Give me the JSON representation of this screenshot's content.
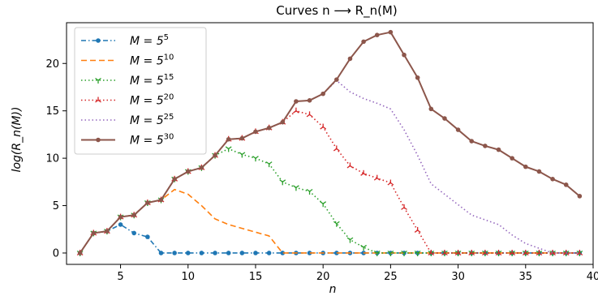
{
  "chart_data": {
    "type": "line",
    "title": "Curves n ⟶ R_n(M)",
    "xlabel": "n",
    "ylabel": "log(R_n(M))",
    "xlim": [
      1,
      40
    ],
    "ylim": [
      -1.2,
      24.3
    ],
    "xticks": [
      5,
      10,
      15,
      20,
      25,
      30,
      35,
      40
    ],
    "yticks": [
      0,
      5,
      10,
      15,
      20
    ],
    "legend_position": "top-left",
    "grid": false,
    "series": [
      {
        "name": "M = 5^5",
        "base": "M = 5",
        "exp": "5",
        "color": "#1f77b4",
        "style": "dashdot",
        "marker": "dot",
        "x": [
          2,
          3,
          4,
          5,
          6,
          7,
          8,
          9,
          10,
          11,
          12,
          13,
          14,
          15,
          16,
          17,
          18,
          19,
          20,
          21,
          22,
          23,
          24,
          25,
          26,
          27,
          28,
          29,
          30,
          31,
          32,
          33,
          34,
          35,
          36,
          37,
          38,
          39
        ],
        "y": [
          0,
          2.1,
          2.3,
          3.0,
          2.1,
          1.7,
          0,
          0,
          0,
          0,
          0,
          0,
          0,
          0,
          0,
          0,
          0,
          0,
          0,
          0,
          0,
          0,
          0,
          0,
          0,
          0,
          0,
          0,
          0,
          0,
          0,
          0,
          0,
          0,
          0,
          0,
          0,
          0
        ]
      },
      {
        "name": "M = 5^10",
        "base": "M = 5",
        "exp": "10",
        "color": "#ff7f0e",
        "style": "dashed",
        "marker": "none",
        "x": [
          2,
          3,
          4,
          5,
          6,
          7,
          8,
          9,
          10,
          11,
          12,
          13,
          14,
          15,
          16,
          17,
          18,
          19,
          20,
          21,
          22,
          23,
          24,
          25,
          26,
          27,
          28,
          29,
          30,
          31,
          32,
          33,
          34,
          35,
          36,
          37,
          38,
          39
        ],
        "y": [
          0,
          2.1,
          2.3,
          3.8,
          4.0,
          5.3,
          5.6,
          6.7,
          6.2,
          5.0,
          3.6,
          3.0,
          2.6,
          2.2,
          1.8,
          0,
          0,
          0,
          0,
          0,
          0,
          0,
          0,
          0,
          0,
          0,
          0,
          0,
          0,
          0,
          0,
          0,
          0,
          0,
          0,
          0,
          0,
          0
        ]
      },
      {
        "name": "M = 5^15",
        "base": "M = 5",
        "exp": "15",
        "color": "#2ca02c",
        "style": "dotted",
        "marker": "tri_down",
        "x": [
          2,
          3,
          4,
          5,
          6,
          7,
          8,
          9,
          10,
          11,
          12,
          13,
          14,
          15,
          16,
          17,
          18,
          19,
          20,
          21,
          22,
          23,
          24,
          25,
          26,
          27,
          28,
          29,
          30,
          31,
          32,
          33,
          34,
          35,
          36,
          37,
          38,
          39
        ],
        "y": [
          0,
          2.1,
          2.3,
          3.8,
          4.0,
          5.3,
          5.6,
          7.8,
          8.6,
          9.0,
          10.3,
          11.0,
          10.4,
          10.0,
          9.4,
          7.5,
          6.9,
          6.5,
          5.2,
          3.1,
          1.4,
          0.6,
          0,
          0,
          0,
          0,
          0,
          0,
          0,
          0,
          0,
          0,
          0,
          0,
          0,
          0,
          0,
          0
        ]
      },
      {
        "name": "M = 5^20",
        "base": "M = 5",
        "exp": "20",
        "color": "#d62728",
        "style": "dotted",
        "marker": "tri_up",
        "x": [
          2,
          3,
          4,
          5,
          6,
          7,
          8,
          9,
          10,
          11,
          12,
          13,
          14,
          15,
          16,
          17,
          18,
          19,
          20,
          21,
          22,
          23,
          24,
          25,
          26,
          27,
          28,
          29,
          30,
          31,
          32,
          33,
          34,
          35,
          36,
          37,
          38,
          39
        ],
        "y": [
          0,
          2.1,
          2.3,
          3.8,
          4.0,
          5.3,
          5.6,
          7.8,
          8.6,
          9.0,
          10.3,
          12.0,
          12.1,
          12.8,
          13.2,
          13.8,
          15.0,
          14.6,
          13.3,
          11.0,
          9.2,
          8.4,
          7.9,
          7.4,
          4.8,
          2.4,
          0,
          0,
          0,
          0,
          0,
          0,
          0,
          0,
          0,
          0,
          0,
          0
        ]
      },
      {
        "name": "M = 5^25",
        "base": "M = 5",
        "exp": "25",
        "color": "#9467bd",
        "style": "dotted",
        "marker": "none",
        "x": [
          2,
          3,
          4,
          5,
          6,
          7,
          8,
          9,
          10,
          11,
          12,
          13,
          14,
          15,
          16,
          17,
          18,
          19,
          20,
          21,
          22,
          23,
          24,
          25,
          26,
          27,
          28,
          29,
          30,
          31,
          32,
          33,
          34,
          35,
          36,
          37,
          38,
          39
        ],
        "y": [
          0,
          2.1,
          2.3,
          3.8,
          4.0,
          5.3,
          5.6,
          7.8,
          8.6,
          9.0,
          10.3,
          12.0,
          12.1,
          12.8,
          13.2,
          13.8,
          16.0,
          16.1,
          16.8,
          18.2,
          17.0,
          16.3,
          15.8,
          15.2,
          13.0,
          10.3,
          7.3,
          6.2,
          5.1,
          4.0,
          3.5,
          3.0,
          1.9,
          1.0,
          0.5,
          0,
          0,
          0
        ]
      },
      {
        "name": "M = 5^30",
        "base": "M = 5",
        "exp": "30",
        "color": "#8c564b",
        "style": "solid",
        "marker": "dot",
        "x": [
          2,
          3,
          4,
          5,
          6,
          7,
          8,
          9,
          10,
          11,
          12,
          13,
          14,
          15,
          16,
          17,
          18,
          19,
          20,
          21,
          22,
          23,
          24,
          25,
          26,
          27,
          28,
          29,
          30,
          31,
          32,
          33,
          34,
          35,
          36,
          37,
          38,
          39
        ],
        "y": [
          0,
          2.1,
          2.3,
          3.8,
          4.0,
          5.3,
          5.6,
          7.8,
          8.6,
          9.0,
          10.3,
          12.0,
          12.1,
          12.8,
          13.2,
          13.8,
          16.0,
          16.1,
          16.8,
          18.3,
          20.5,
          22.3,
          23.0,
          23.3,
          20.9,
          18.5,
          15.2,
          14.2,
          13.0,
          11.8,
          11.3,
          10.9,
          10.0,
          9.1,
          8.6,
          7.8,
          7.2,
          6.0
        ]
      }
    ]
  }
}
